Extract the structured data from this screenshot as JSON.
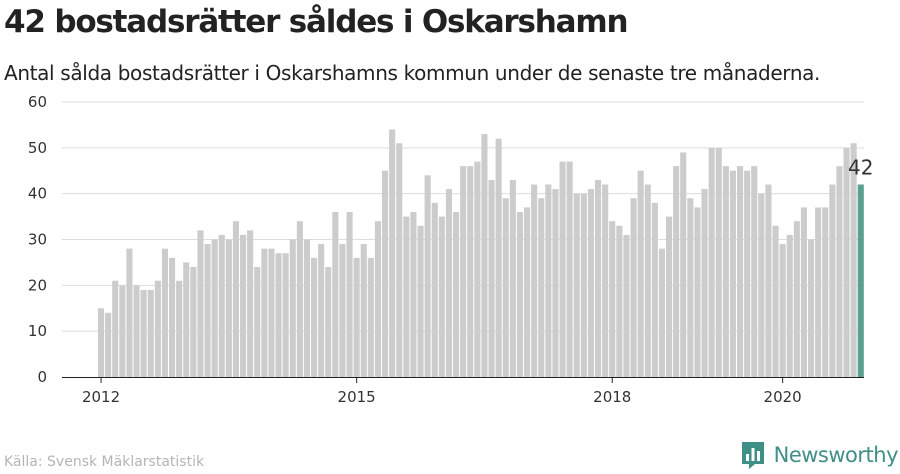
{
  "header": {
    "title": "42 bostadsrätter såldes i Oskarshamn",
    "subtitle": "Antal sålda bostadsrätter i Oskarshamns kommun under de senaste tre månaderna."
  },
  "footer": {
    "source": "Källa: Svensk Mäklarstatistik",
    "brand": "Newsworthy",
    "brand_icon": "newsworthy-logo-icon"
  },
  "colors": {
    "bar": "#cccccc",
    "highlight": "#5a9e94",
    "grid": "#dddddd",
    "axis": "#222222",
    "brand": "#3f8f86"
  },
  "chart_data": {
    "type": "bar",
    "title": "42 bostadsrätter såldes i Oskarshamn",
    "subtitle": "Antal sålda bostadsrätter i Oskarshamns kommun under de senaste tre månaderna.",
    "xlabel": "",
    "ylabel": "",
    "ylim": [
      0,
      60
    ],
    "yticks": [
      0,
      10,
      20,
      30,
      40,
      50,
      60
    ],
    "grid": true,
    "legend": "none",
    "x_start": "2012-01",
    "x_step": "month",
    "xticks": [
      {
        "label": "2012",
        "x": "2012-01"
      },
      {
        "label": "2015",
        "x": "2015-01"
      },
      {
        "label": "2018",
        "x": "2018-01"
      },
      {
        "label": "2020",
        "x": "2020-01"
      }
    ],
    "values": [
      15,
      14,
      21,
      20,
      28,
      20,
      19,
      19,
      21,
      28,
      26,
      21,
      25,
      24,
      32,
      29,
      30,
      31,
      30,
      34,
      31,
      32,
      24,
      28,
      28,
      27,
      27,
      30,
      34,
      30,
      26,
      29,
      24,
      36,
      29,
      36,
      26,
      29,
      26,
      34,
      45,
      54,
      51,
      35,
      36,
      33,
      44,
      38,
      35,
      41,
      36,
      46,
      46,
      47,
      53,
      43,
      52,
      39,
      43,
      36,
      37,
      42,
      39,
      42,
      41,
      47,
      47,
      40,
      40,
      41,
      43,
      42,
      34,
      33,
      31,
      39,
      45,
      42,
      38,
      28,
      35,
      46,
      49,
      39,
      37,
      41,
      50,
      50,
      46,
      45,
      46,
      45,
      46,
      40,
      42,
      33,
      29,
      31,
      34,
      37,
      30,
      37,
      37,
      42,
      46,
      50,
      51,
      42
    ],
    "highlight_last": true,
    "last_value_label": "42"
  }
}
